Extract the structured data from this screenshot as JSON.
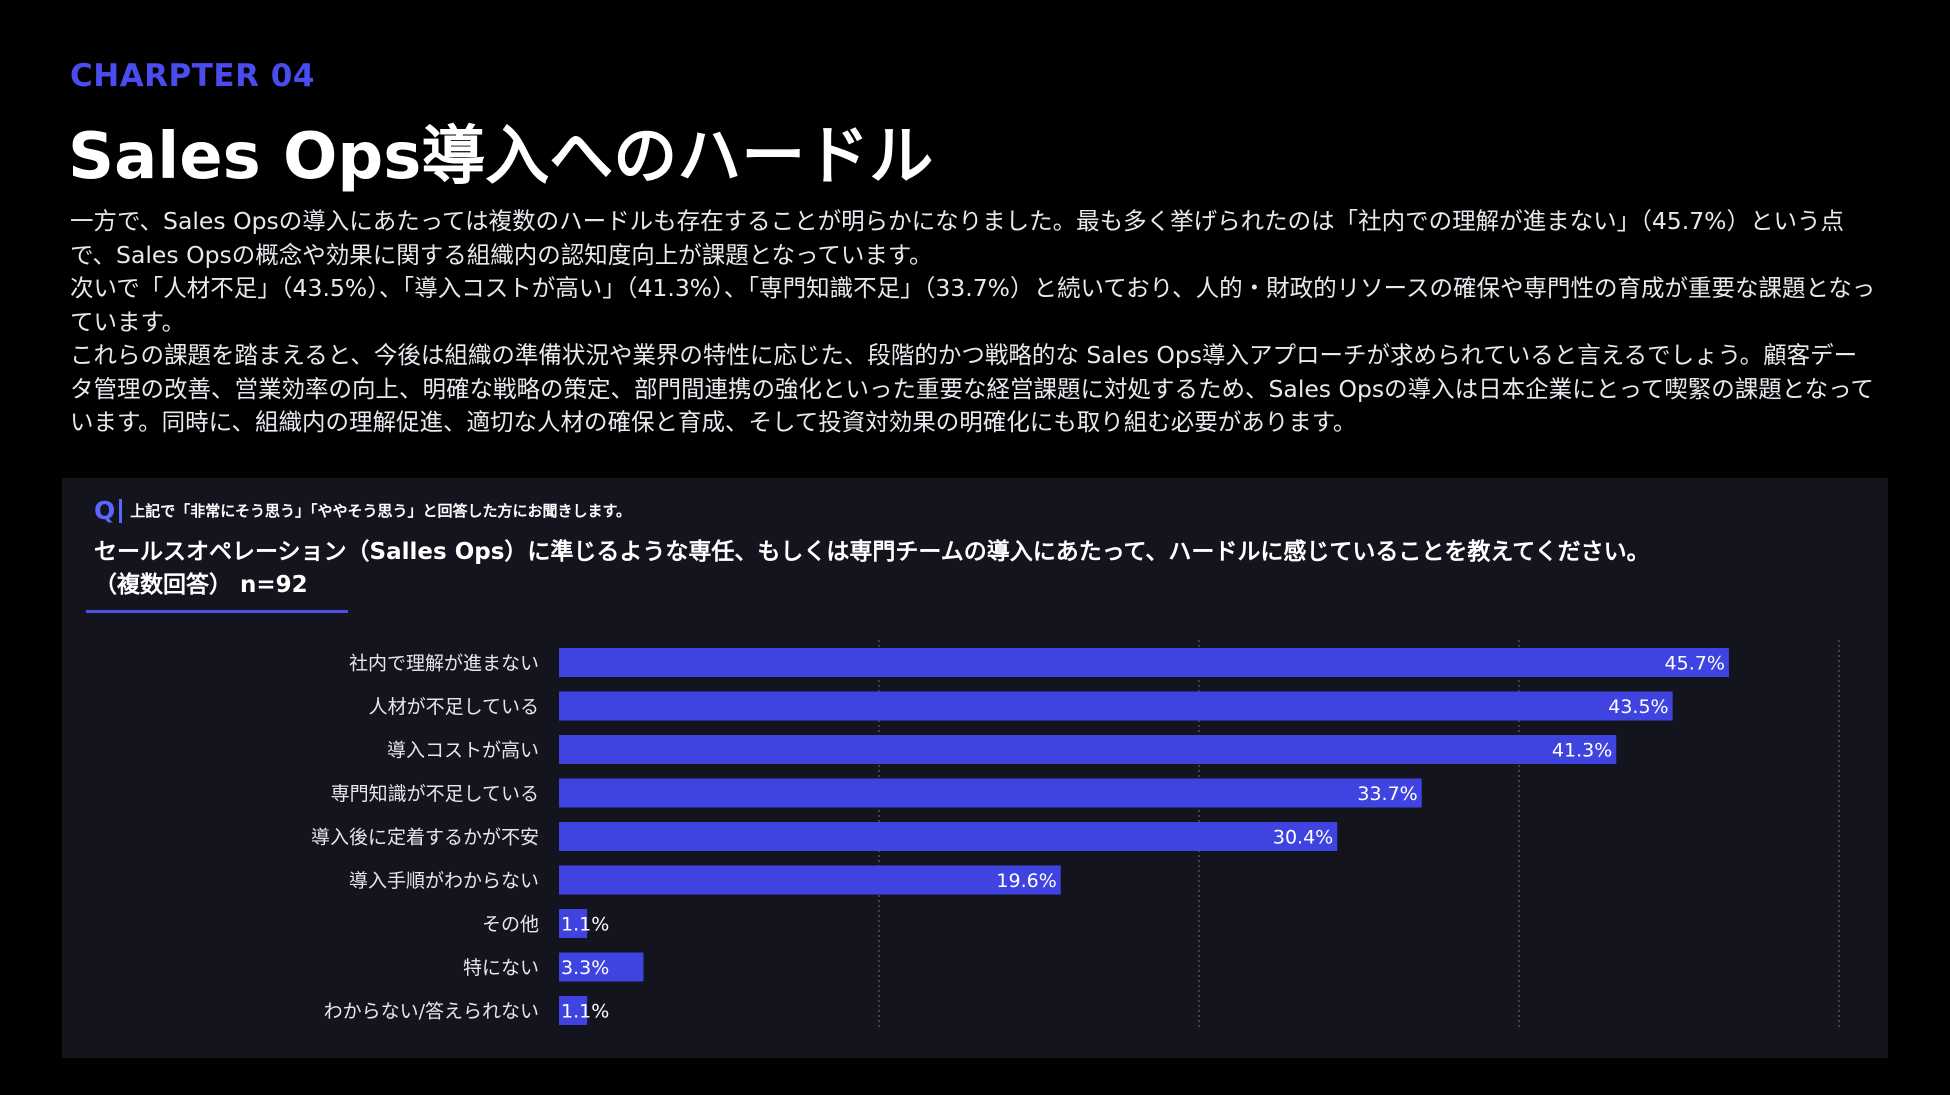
{
  "header": {
    "chapter": "CHARPTER 04",
    "title": "Sales Ops導入へのハードル"
  },
  "body": {
    "paragraphs": [
      "一方で、Sales Opsの導入にあたっては複数のハードルも存在することが明らかになりました。最も多く挙げられたのは「社内での理解が進まない」（45.7%）という点で、Sales Opsの概念や効果に関する組織内の認知度向上が課題となっています。",
      "次いで「人材不足」（43.5%）、「導入コストが高い」（41.3%）、「専門知識不足」（33.7%）と続いており、人的・財政的リソースの確保や専門性の育成が重要な課題となっています。",
      "これらの課題を踏まえると、今後は組織の準備状況や業界の特性に応じた、段階的かつ戦略的な Sales Ops導入アプローチが求められていると言えるでしょう。顧客データ管理の改善、営業効率の向上、明確な戦略の策定、部門間連携の強化といった重要な経営課題に対処するため、Sales Opsの導入は日本企業にとって喫緊の課題となっています。同時に、組織内の理解促進、適切な人材の確保と育成、そして投資対効果の明確化にも取り組む必要があります。"
    ]
  },
  "question": {
    "mark": "Q",
    "pre": "上記で「非常にそう思う」「ややそう思う」と回答した方にお聞きします。",
    "main": "セールスオペレーション（Salles Ops）に準じるような専任、もしくは専門チームの導入にあたって、ハードルに感じていることを教えてください。",
    "sub": "（複数回答） n=92"
  },
  "colors": {
    "accent": "#4a4cf0",
    "bar": "#3f43e0",
    "panel": "#14141f",
    "background": "#000000"
  },
  "chart_data": {
    "type": "bar",
    "orientation": "horizontal",
    "categories": [
      "社内で理解が進まない",
      "人材が不足している",
      "導入コストが高い",
      "専門知識が不足している",
      "導入後に定着するかが不安",
      "導入手順がわからない",
      "その他",
      "特にない",
      "わからない/答えられない"
    ],
    "values": [
      45.7,
      43.5,
      41.3,
      33.7,
      30.4,
      19.6,
      1.1,
      3.3,
      1.1
    ],
    "value_labels": [
      "45.7%",
      "43.5%",
      "41.3%",
      "33.7%",
      "30.4%",
      "19.6%",
      "1.1%",
      "3.3%",
      "1.1%"
    ],
    "xlim": [
      0,
      50
    ],
    "gridlines": [
      12.5,
      25,
      37.5,
      50
    ],
    "grid": true,
    "legend": "none"
  }
}
